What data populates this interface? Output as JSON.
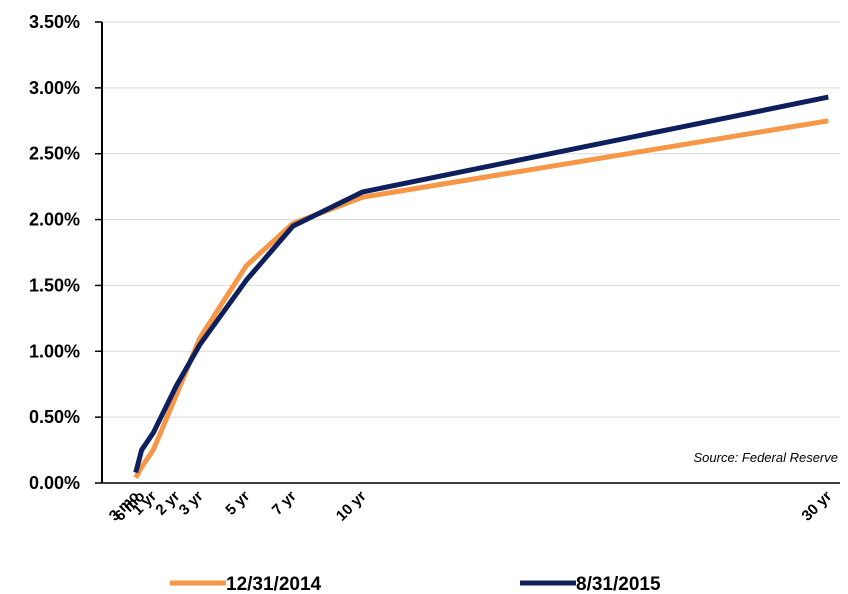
{
  "chart_data": {
    "type": "line",
    "annotation": "Source: Federal Reserve",
    "x": [
      0.25,
      0.5,
      1,
      2,
      3,
      5,
      7,
      10,
      30
    ],
    "xlim": [
      -1.2,
      30.5
    ],
    "xticks": [
      {
        "value": 0.25,
        "label": "3 mo"
      },
      {
        "value": 0.5,
        "label": "6 mo"
      },
      {
        "value": 1,
        "label": "1 yr"
      },
      {
        "value": 2,
        "label": "2 yr"
      },
      {
        "value": 3,
        "label": "3 yr"
      },
      {
        "value": 5,
        "label": "5 yr"
      },
      {
        "value": 7,
        "label": "7 yr"
      },
      {
        "value": 10,
        "label": "10 yr"
      },
      {
        "value": 30,
        "label": "30 yr"
      }
    ],
    "ylim": [
      0,
      3.5
    ],
    "yticks": [
      {
        "value": 0,
        "label": "0.00%"
      },
      {
        "value": 0.5,
        "label": "0.50%"
      },
      {
        "value": 1,
        "label": "1.00%"
      },
      {
        "value": 1.5,
        "label": "1.50%"
      },
      {
        "value": 2,
        "label": "2.00%"
      },
      {
        "value": 2.5,
        "label": "2.50%"
      },
      {
        "value": 3,
        "label": "3.00%"
      },
      {
        "value": 3.5,
        "label": "3.50%"
      }
    ],
    "grid": true,
    "legend": "bottom",
    "series": [
      {
        "name": "12/31/2014",
        "color": "#f79646",
        "values": [
          0.04,
          0.12,
          0.25,
          0.67,
          1.1,
          1.65,
          1.97,
          2.17,
          2.75
        ]
      },
      {
        "name": "8/31/2015",
        "color": "#0d1f5c",
        "values": [
          0.08,
          0.25,
          0.38,
          0.74,
          1.05,
          1.54,
          1.95,
          2.21,
          2.93
        ]
      }
    ]
  }
}
